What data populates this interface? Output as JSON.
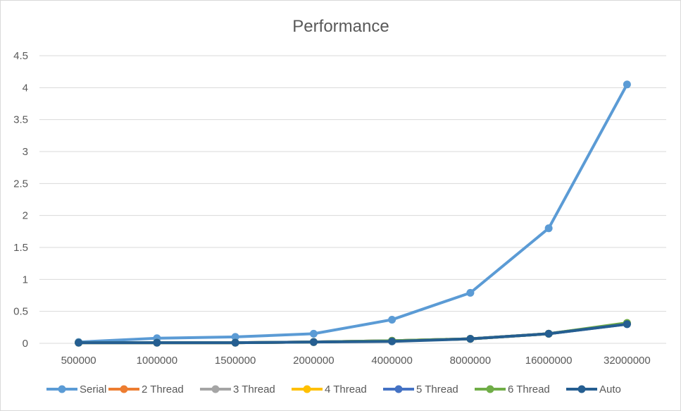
{
  "chart_data": {
    "type": "line",
    "title": "Performance",
    "xlabel": "",
    "ylabel": "",
    "categories": [
      "500000",
      "1000000",
      "1500000",
      "2000000",
      "4000000",
      "8000000",
      "16000000",
      "32000000"
    ],
    "ylim": [
      0,
      4.5
    ],
    "yticks": [
      0,
      0.5,
      1,
      1.5,
      2,
      2.5,
      3,
      3.5,
      4,
      4.5
    ],
    "ytick_labels": [
      "0",
      "0.5",
      "1",
      "1.5",
      "2",
      "2.5",
      "3",
      "3.5",
      "4",
      "4.5"
    ],
    "grid": true,
    "legend_position": "bottom",
    "series": [
      {
        "name": "Serial",
        "color": "#5b9bd5",
        "values": [
          0.02,
          0.08,
          0.1,
          0.15,
          0.37,
          0.79,
          1.8,
          4.05
        ]
      },
      {
        "name": "2 Thread",
        "color": "#ed7d31",
        "values": [
          0.01,
          0.01,
          0.01,
          0.02,
          0.04,
          0.07,
          0.15,
          0.31
        ]
      },
      {
        "name": "3 Thread",
        "color": "#a5a5a5",
        "values": [
          0.01,
          0.01,
          0.01,
          0.02,
          0.04,
          0.07,
          0.15,
          0.31
        ]
      },
      {
        "name": "4 Thread",
        "color": "#ffc000",
        "values": [
          0.01,
          0.01,
          0.01,
          0.02,
          0.04,
          0.07,
          0.15,
          0.31
        ]
      },
      {
        "name": "5 Thread",
        "color": "#4472c4",
        "values": [
          0.01,
          0.01,
          0.01,
          0.02,
          0.04,
          0.07,
          0.15,
          0.3
        ]
      },
      {
        "name": "6 Thread",
        "color": "#70ad47",
        "values": [
          0.01,
          0.01,
          0.01,
          0.02,
          0.04,
          0.07,
          0.15,
          0.32
        ]
      },
      {
        "name": "Auto",
        "color": "#255e91",
        "values": [
          0.01,
          0.01,
          0.01,
          0.02,
          0.03,
          0.07,
          0.15,
          0.3
        ]
      }
    ]
  }
}
